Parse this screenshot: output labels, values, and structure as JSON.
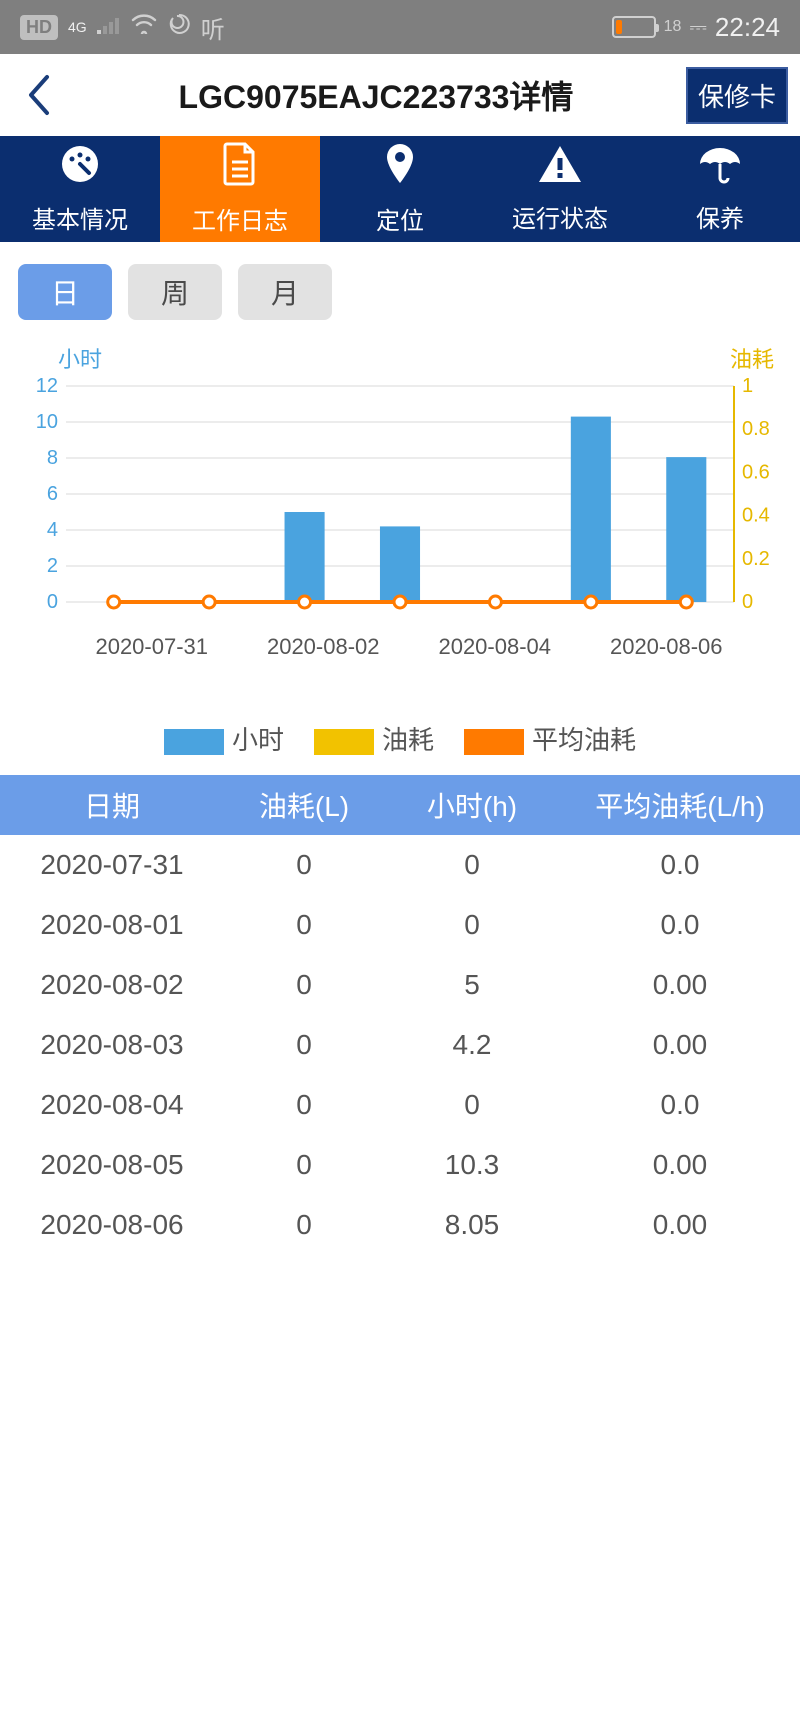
{
  "status": {
    "hd_badge": "HD",
    "network_label": "4G",
    "battery_percent": 18,
    "battery_text": "18",
    "time": "22:24"
  },
  "header": {
    "title": "LGC9075EAJC223733详情",
    "warranty_button": "保修卡"
  },
  "nav": [
    {
      "key": "basic",
      "label": "基本情况",
      "icon": "dashboard",
      "active": false
    },
    {
      "key": "log",
      "label": "工作日志",
      "icon": "document",
      "active": true
    },
    {
      "key": "locate",
      "label": "定位",
      "icon": "pin",
      "active": false
    },
    {
      "key": "status",
      "label": "运行状态",
      "icon": "warning",
      "active": false
    },
    {
      "key": "maint",
      "label": "保养",
      "icon": "umbrella",
      "active": false
    }
  ],
  "range": {
    "options": [
      "日",
      "周",
      "月"
    ],
    "active_index": 0
  },
  "chart": {
    "type": "bar+line-dual-axis",
    "left_axis_title": "小时",
    "right_axis_title": "油耗",
    "left_ylim": [
      0,
      12
    ],
    "left_ticks": [
      0,
      2,
      4,
      6,
      8,
      10,
      12
    ],
    "right_ylim": [
      0,
      1
    ],
    "right_ticks": [
      0,
      0.2,
      0.4,
      0.6,
      0.8,
      1
    ],
    "x_labels_shown": [
      "2020-07-31",
      "2020-08-02",
      "2020-08-04",
      "2020-08-06"
    ],
    "categories": [
      "2020-07-31",
      "2020-08-01",
      "2020-08-02",
      "2020-08-03",
      "2020-08-04",
      "2020-08-05",
      "2020-08-06"
    ],
    "bar_values": [
      0,
      0,
      5,
      4.2,
      0,
      10.3,
      8.05
    ],
    "line_values": [
      0,
      0,
      0,
      0,
      0,
      0,
      0
    ],
    "bar_color": "#4aa3df",
    "line_color": "#ff7a00",
    "marker_color": "#ffffff",
    "marker_border": "#ff7a00",
    "left_axis_color": "#4aa3df",
    "right_axis_color": "#e6b800",
    "grid_color": "#d9d9d9",
    "background_color": "#ffffff",
    "bar_width_ratio": 0.42,
    "axis_fontsize": 20
  },
  "legend": [
    {
      "label": "小时",
      "color": "#4aa3df"
    },
    {
      "label": "油耗",
      "color": "#f2c200"
    },
    {
      "label": "平均油耗",
      "color": "#ff7a00"
    }
  ],
  "table": {
    "columns": [
      "日期",
      "油耗(L)",
      "小时(h)",
      "平均油耗(L/h)"
    ],
    "rows": [
      [
        "2020-07-31",
        "0",
        "0",
        "0.0"
      ],
      [
        "2020-08-01",
        "0",
        "0",
        "0.0"
      ],
      [
        "2020-08-02",
        "0",
        "5",
        "0.00"
      ],
      [
        "2020-08-03",
        "0",
        "4.2",
        "0.00"
      ],
      [
        "2020-08-04",
        "0",
        "0",
        "0.0"
      ],
      [
        "2020-08-05",
        "0",
        "10.3",
        "0.00"
      ],
      [
        "2020-08-06",
        "0",
        "8.05",
        "0.00"
      ]
    ]
  }
}
